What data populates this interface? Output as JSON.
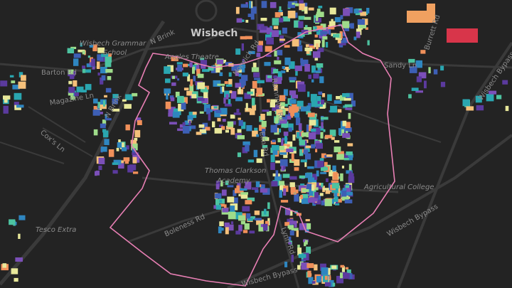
{
  "labels": {
    "town": "Wisbech",
    "grammar_school_1": "Wisbech Grammar",
    "grammar_school_2": "School",
    "n_brink_top": "N Brink",
    "angles_theatre": "Angles Theatre",
    "norwich_rd": "Norwich Rd",
    "ramnoth_rd": "Ramnoth Rd",
    "barton_rd": "Barton Rd",
    "magazine_ln": "Magazine Ln",
    "cox_ln": "Cox's Ln",
    "n_brink_left": "N Brink",
    "academy_1": "Thomas Clarkson",
    "academy_2": "Academy",
    "agricultural_college": "Agricultural College",
    "sandy_ln": "Sandy Ln",
    "burrett_rd": "Burrett Rd",
    "bypass_east": "Wisbech Bypass",
    "bypass_south": "Wisbech Bypass",
    "tesco": "Tesco Extra",
    "boleness_rd": "Boleness Rd",
    "elm_rd": "Elm Rd",
    "lynn_rd": "Lynn Rd"
  }
}
